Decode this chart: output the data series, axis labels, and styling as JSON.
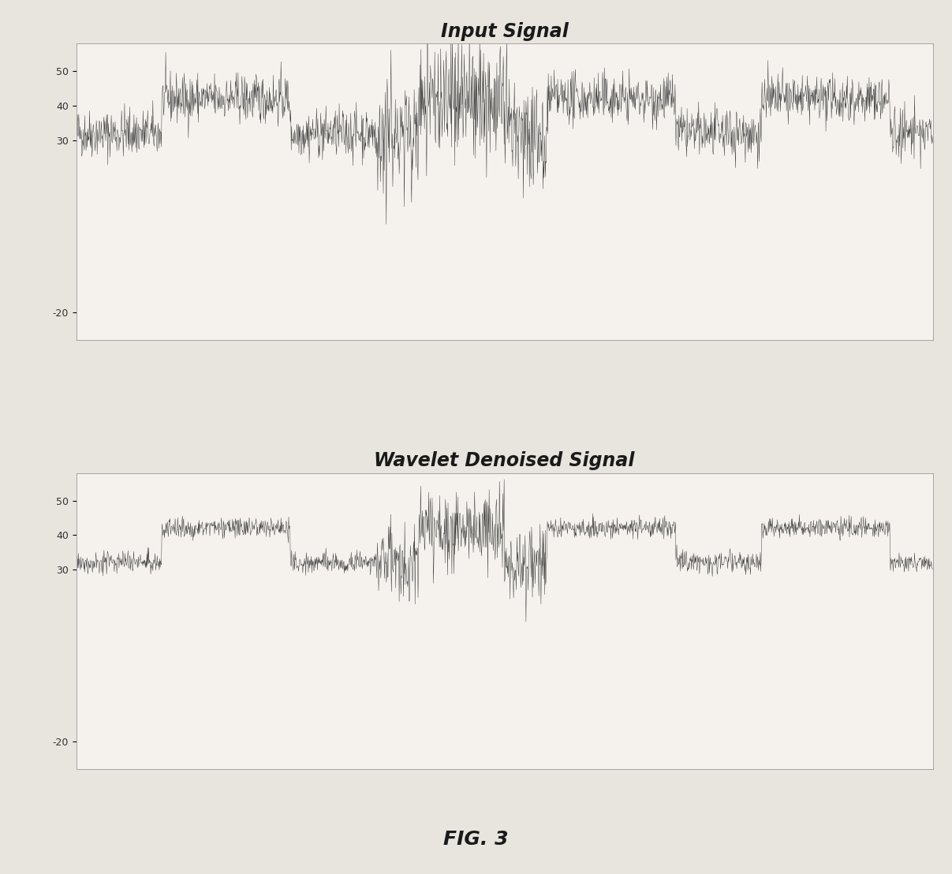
{
  "title1": "Input Signal",
  "title2": "Wavelet Denoised Signal",
  "fig_label": "FIG. 3",
  "yticks_top": [
    50,
    40,
    30,
    -20
  ],
  "yticks_bot": [
    50,
    40,
    30,
    -20
  ],
  "ylim": [
    -28,
    58
  ],
  "low_level": 32,
  "high_level": 42,
  "noise_std1": 3.5,
  "noise_std2": 1.5,
  "background_color": "#e8e4de",
  "signal_color": "#111111",
  "title_fontsize": 17,
  "fig_label_fontsize": 18,
  "seed": 42,
  "n_points": 2000
}
